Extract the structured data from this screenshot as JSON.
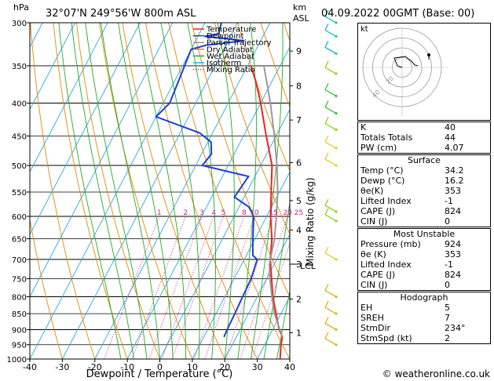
{
  "header": {
    "location": "32°07'N  249°56'W  800m  ASL",
    "datetime": "04.09.2022  00GMT  (Base: 00)",
    "y_unit_left": "hPa",
    "y_unit_right_1": "km",
    "y_unit_right_2": "ASL",
    "credit": "© weatheronline.co.uk"
  },
  "chart_data": {
    "type": "line",
    "title": "32°07'N  249°56'W  800m  ASL",
    "xlabel": "Dewpoint / Temperature (°C)",
    "ylabel": "hPa",
    "y2label": "Mixing Ratio (g/kg)",
    "x_ticks": [
      "-40",
      "-30",
      "-20",
      "-10",
      "0",
      "10",
      "20",
      "30",
      "40"
    ],
    "y_ticks": [
      "300",
      "350",
      "400",
      "450",
      "500",
      "550",
      "600",
      "650",
      "700",
      "750",
      "800",
      "850",
      "900",
      "950",
      "1000"
    ],
    "km_ticks": [
      {
        "label": "9",
        "p": 332
      },
      {
        "label": "8",
        "p": 376
      },
      {
        "label": "7",
        "p": 425
      },
      {
        "label": "6",
        "p": 495
      },
      {
        "label": "5",
        "p": 567
      },
      {
        "label": "4",
        "p": 630
      },
      {
        "label": "3",
        "p": 712
      },
      {
        "label": "2",
        "p": 807
      },
      {
        "label": "1",
        "p": 910
      }
    ],
    "lcl_label": "LCL",
    "lcl_p": 712,
    "mixing_ratio_labels": [
      {
        "label": "1",
        "v": 1
      },
      {
        "label": "2",
        "v": 2
      },
      {
        "label": "3",
        "v": 3
      },
      {
        "label": "4",
        "v": 4
      },
      {
        "label": "5",
        "v": 5
      },
      {
        "label": "8",
        "v": 8
      },
      {
        "label": "10",
        "v": 10
      },
      {
        "label": "15",
        "v": 15
      },
      {
        "label": "20",
        "v": 20
      },
      {
        "label": "25",
        "v": 25
      }
    ],
    "legend": [
      {
        "name": "Temperature",
        "color": "#ee2222"
      },
      {
        "name": "Dewpoint",
        "color": "#1a3fd6"
      },
      {
        "name": "Parcel Trajectory",
        "color": "#999999"
      },
      {
        "name": "Dry Adiabat",
        "color": "#e08a00"
      },
      {
        "name": "Wet Adiabat",
        "color": "#22aa22"
      },
      {
        "name": "Isotherm",
        "color": "#29a9e0"
      },
      {
        "name": "Mixing Ratio",
        "color": "#cc2288",
        "dotted": true
      }
    ],
    "series": [
      {
        "name": "Temperature",
        "color": "#ee2222",
        "points": [
          [
            1000,
            37
          ],
          [
            950,
            35
          ],
          [
            924,
            34.2
          ],
          [
            900,
            32
          ],
          [
            850,
            28.5
          ],
          [
            800,
            24.8
          ],
          [
            750,
            21.5
          ],
          [
            700,
            18
          ],
          [
            650,
            15.2
          ],
          [
            600,
            11.2
          ],
          [
            550,
            7.5
          ],
          [
            500,
            3.5
          ],
          [
            450,
            -3
          ],
          [
            400,
            -10
          ],
          [
            370,
            -15
          ],
          [
            350,
            -19
          ]
        ]
      },
      {
        "name": "Dewpoint",
        "color": "#1a3fd6",
        "points": [
          [
            924,
            16.2
          ],
          [
            900,
            16
          ],
          [
            850,
            15.8
          ],
          [
            800,
            15.5
          ],
          [
            750,
            15.2
          ],
          [
            700,
            14
          ],
          [
            690,
            12
          ],
          [
            660,
            10
          ],
          [
            600,
            6
          ],
          [
            580,
            3
          ],
          [
            560,
            -3
          ],
          [
            520,
            -2
          ],
          [
            500,
            -18
          ],
          [
            480,
            -17
          ],
          [
            460,
            -19
          ],
          [
            445,
            -24
          ],
          [
            420,
            -40
          ],
          [
            400,
            -38
          ],
          [
            330,
            -40
          ],
          [
            325,
            -36
          ],
          [
            320,
            -25
          ],
          [
            315,
            -38
          ],
          [
            312,
            -34
          ],
          [
            300,
            -35
          ]
        ]
      },
      {
        "name": "Parcel Trajectory",
        "color": "#999999",
        "points": [
          [
            924,
            34.2
          ],
          [
            850,
            28
          ],
          [
            800,
            24.5
          ],
          [
            750,
            21
          ],
          [
            712,
            18.5
          ],
          [
            650,
            16
          ],
          [
            600,
            13
          ],
          [
            550,
            9.5
          ],
          [
            500,
            5
          ],
          [
            450,
            -0.5
          ],
          [
            400,
            -7
          ],
          [
            350,
            -15
          ]
        ]
      }
    ],
    "dry_adiabats_theta_C": [
      -30,
      -20,
      -10,
      0,
      10,
      20,
      30,
      40,
      50,
      60,
      70,
      80,
      90,
      100,
      110,
      120,
      130,
      140,
      150,
      160,
      170,
      180,
      190,
      200
    ],
    "wet_adiabats_C": [
      -12,
      -8,
      -4,
      0,
      4,
      8,
      12,
      16,
      20,
      24,
      28,
      32,
      36
    ],
    "isotherms_C": [
      -110,
      -100,
      -90,
      -80,
      -70,
      -60,
      -50,
      -40,
      -30,
      -20,
      -10,
      0,
      10,
      20,
      30,
      40
    ],
    "mixing_ratios": [
      1,
      2,
      3,
      4,
      5,
      8,
      10,
      15,
      20,
      25
    ],
    "wind_barbs": [
      {
        "p": 300,
        "color": "#00bbbb"
      },
      {
        "p": 315,
        "color": "#00bbbb"
      },
      {
        "p": 335,
        "color": "#00bbbb"
      },
      {
        "p": 360,
        "color": "#88cc00"
      },
      {
        "p": 390,
        "color": "#22bb22"
      },
      {
        "p": 415,
        "color": "#22bb22"
      },
      {
        "p": 440,
        "color": "#88cc00"
      },
      {
        "p": 470,
        "color": "#ddcc00"
      },
      {
        "p": 500,
        "color": "#ddcc00"
      },
      {
        "p": 590,
        "color": "#88cc00"
      },
      {
        "p": 610,
        "color": "#88cc00"
      },
      {
        "p": 700,
        "color": "#ddcc00"
      },
      {
        "p": 800,
        "color": "#ddaa00"
      },
      {
        "p": 850,
        "color": "#ddaa00"
      },
      {
        "p": 900,
        "color": "#ddaa00"
      },
      {
        "p": 950,
        "color": "#ddaa00"
      }
    ]
  },
  "hodograph": {
    "label": "kt",
    "ring_labels": [
      "20",
      "40"
    ],
    "points": [
      [
        0,
        0
      ],
      [
        -1.5,
        0.5
      ],
      [
        -2.5,
        3
      ],
      [
        1,
        3.5
      ],
      [
        3,
        2
      ],
      [
        4,
        0.8
      ],
      [
        5,
        0.5
      ]
    ],
    "storm": [
      8.5,
      2.5
    ]
  },
  "indices": {
    "rows": [
      {
        "label": "K",
        "value": "40"
      },
      {
        "label": "Totals Totals",
        "value": "44"
      },
      {
        "label": "PW (cm)",
        "value": "4.07"
      }
    ]
  },
  "surface": {
    "title": "Surface",
    "rows": [
      {
        "label": "Temp (°C)",
        "value": "34.2"
      },
      {
        "label": "Dewp (°C)",
        "value": "16.2"
      },
      {
        "label": "θe(K)",
        "value": "353"
      },
      {
        "label": "Lifted Index",
        "value": "-1"
      },
      {
        "label": "CAPE (J)",
        "value": "824"
      },
      {
        "label": "CIN (J)",
        "value": "0"
      }
    ]
  },
  "most_unstable": {
    "title": "Most Unstable",
    "rows": [
      {
        "label": "Pressure (mb)",
        "value": "924"
      },
      {
        "label": "θe (K)",
        "value": "353"
      },
      {
        "label": "Lifted Index",
        "value": "-1"
      },
      {
        "label": "CAPE (J)",
        "value": "824"
      },
      {
        "label": "CIN (J)",
        "value": "0"
      }
    ]
  },
  "hodograph_table": {
    "title": "Hodograph",
    "rows": [
      {
        "label": "EH",
        "value": "5"
      },
      {
        "label": "SREH",
        "value": "7"
      },
      {
        "label": "StmDir",
        "value": "234°"
      },
      {
        "label": "StmSpd (kt)",
        "value": "2"
      }
    ]
  }
}
